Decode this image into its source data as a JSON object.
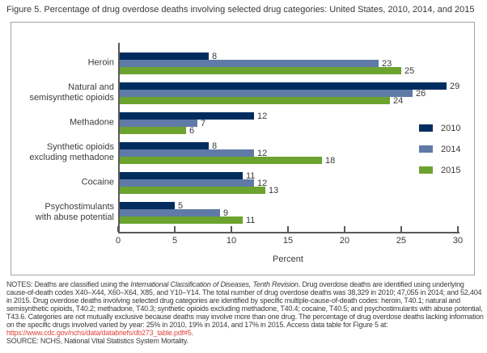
{
  "title": "Figure 5. Percentage of drug overdose deaths involving selected drug categories: United States, 2010, 2014, and 2015",
  "chart_data": {
    "type": "bar",
    "orientation": "horizontal",
    "categories": [
      "Heroin",
      "Natural and\nsemisynthetic opioids",
      "Methadone",
      "Synthetic opioids\nexcluding methadone",
      "Cocaine",
      "Psychostimulants\nwith abuse potential"
    ],
    "series": [
      {
        "name": "2010",
        "color": "#002d5e",
        "values": [
          8,
          29,
          12,
          8,
          11,
          5
        ]
      },
      {
        "name": "2014",
        "color": "#5f7aa6",
        "values": [
          23,
          26,
          7,
          12,
          12,
          9
        ]
      },
      {
        "name": "2015",
        "color": "#6ca32f",
        "values": [
          25,
          24,
          6,
          18,
          13,
          11
        ]
      }
    ],
    "xlabel": "Percent",
    "xlim": [
      0,
      30
    ],
    "xticks": [
      0,
      5,
      10,
      15,
      20,
      25,
      30
    ],
    "legend_position": "right",
    "value_labels": true,
    "grid": false
  },
  "colors": {
    "series_2010": "#002d5e",
    "series_2014": "#5f7aa6",
    "series_2015": "#6ca32f",
    "axis": "#595959",
    "frame_border": "#a3a3a3",
    "link": "#e0433b"
  },
  "notes": {
    "prefix": "NOTES: Deaths are classified using the ",
    "italic": "International Classification of Diseases, Tenth Revision",
    "body": ". Drug overdose deaths are identified using underlying cause-of-death codes X40–X44, X60–X64, X85, and Y10–Y14. The total number of drug overdose deaths was 38,329 in 2010; 47,055 in 2014; and 52,404 in 2015. Drug overdose deaths involving selected drug categories are identified by specific multiple-cause-of-death codes: heroin, T40.1; natural and semisynthetic opioids, T40.2; methadone, T40.3; synthetic opioids excluding methadone, T40.4; cocaine, T40.5; and psychostimulants with abuse potential, T43.6. Categories are not mutually exclusive because deaths may involve more than one drug. The percentage of drug overdose deaths lacking information on the specific drugs involved varied by year: 25% in 2010, 19% in 2014, and 17% in 2015. Access data table for Figure 5 at: ",
    "link": "https://www.cdc.gov/nchs/data/databriefs/db273_table.pdf#5",
    "suffix": ".",
    "source": "SOURCE: NCHS, National Vital Statistics System Mortality."
  }
}
